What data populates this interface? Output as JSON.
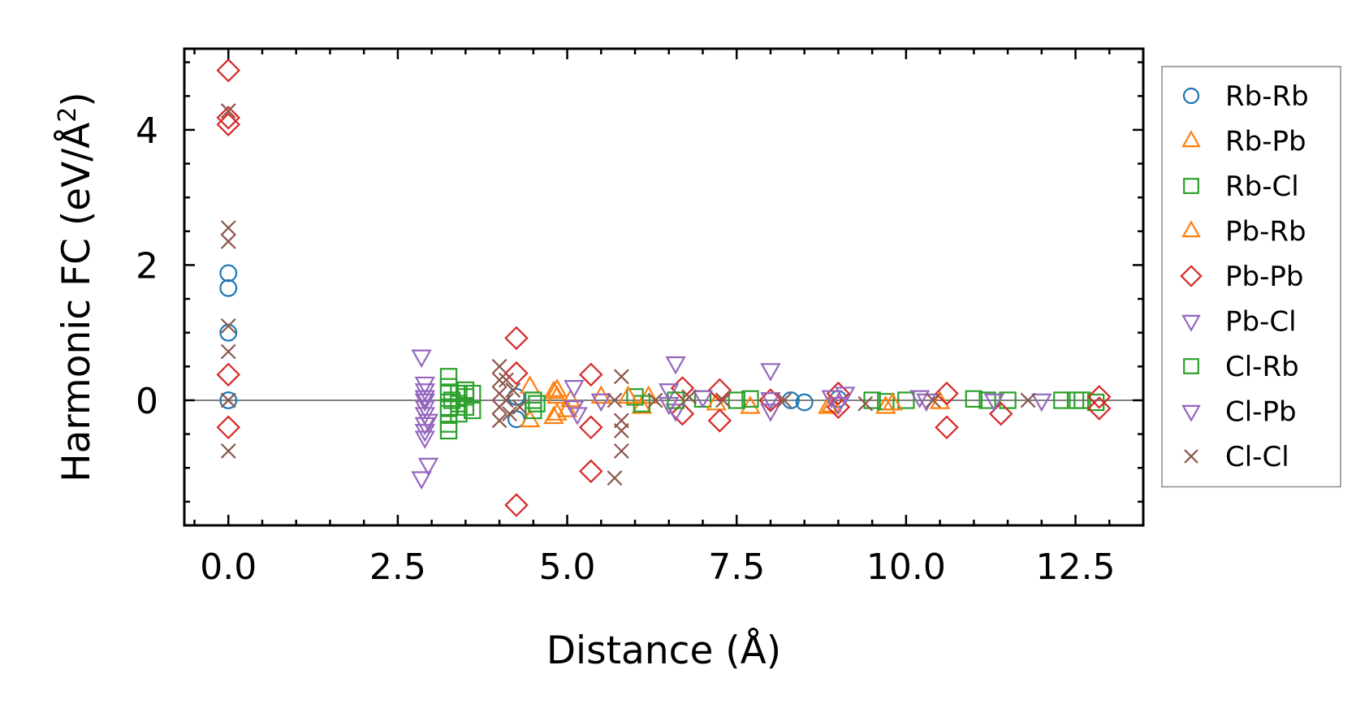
{
  "chart_data": {
    "type": "scatter",
    "title": "",
    "xlabel": "Distance (Å)",
    "ylabel_main": "Harmonic FC (eV/Å",
    "ylabel_sup": "2",
    "ylabel_close": ")",
    "xlim": [
      -0.65,
      13.5
    ],
    "ylim": [
      -1.85,
      5.2
    ],
    "xticks": [
      0.0,
      2.5,
      5.0,
      7.5,
      10.0,
      12.5
    ],
    "xtick_labels": [
      "0.0",
      "2.5",
      "5.0",
      "7.5",
      "10.0",
      "12.5"
    ],
    "yticks": [
      0,
      2,
      4
    ],
    "ytick_labels": [
      "0",
      "2",
      "4"
    ],
    "zero_line": true,
    "legend_position": "outside-right",
    "series": [
      {
        "name": "Rb-Rb",
        "marker": "circle",
        "color": "#1f77b4",
        "points": [
          [
            0,
            1.88
          ],
          [
            0,
            1.66
          ],
          [
            0,
            1.0
          ],
          [
            0,
            0
          ],
          [
            4.25,
            -0.28
          ],
          [
            4.25,
            0.05
          ],
          [
            8.3,
            0.0
          ],
          [
            8.5,
            -0.03
          ],
          [
            9.0,
            0.02
          ]
        ]
      },
      {
        "name": "Rb-Pb",
        "marker": "triangle-up",
        "color": "#ff7f0e",
        "points": [
          [
            4.45,
            0.2
          ],
          [
            4.45,
            -0.3
          ],
          [
            4.8,
            0.12
          ],
          [
            4.8,
            -0.25
          ],
          [
            4.85,
            0.05
          ],
          [
            5.0,
            -0.15
          ],
          [
            5.5,
            0.05
          ],
          [
            6.1,
            -0.1
          ],
          [
            6.2,
            0.05
          ],
          [
            7.7,
            -0.1
          ],
          [
            8.85,
            -0.1
          ],
          [
            9.7,
            -0.1
          ],
          [
            10.5,
            -0.03
          ]
        ]
      },
      {
        "name": "Rb-Cl",
        "marker": "square",
        "color": "#2ca02c",
        "points": [
          [
            3.25,
            0.35
          ],
          [
            3.25,
            0.2
          ],
          [
            3.25,
            0.1
          ],
          [
            3.25,
            -0.1
          ],
          [
            3.25,
            -0.2
          ],
          [
            3.25,
            -0.35
          ],
          [
            3.25,
            -0.45
          ],
          [
            3.4,
            0.1
          ],
          [
            3.4,
            -0.05
          ],
          [
            3.4,
            -0.2
          ],
          [
            3.5,
            0.15
          ],
          [
            3.5,
            -0.1
          ],
          [
            3.6,
            0.1
          ],
          [
            3.6,
            -0.15
          ],
          [
            4.5,
            0.0
          ],
          [
            4.5,
            -0.15
          ],
          [
            6.0,
            0.05
          ],
          [
            6.1,
            -0.05
          ],
          [
            7.0,
            0.02
          ],
          [
            7.7,
            0.02
          ],
          [
            9.7,
            -0.02
          ],
          [
            10.0,
            0.0
          ],
          [
            11.0,
            0.02
          ],
          [
            11.5,
            0.0
          ],
          [
            12.3,
            0.0
          ],
          [
            12.6,
            0.0
          ],
          [
            12.8,
            -0.03
          ]
        ]
      },
      {
        "name": "Pb-Rb",
        "marker": "triangle-up",
        "color": "#ff7f0e",
        "points": [
          [
            4.85,
            0.15
          ],
          [
            4.85,
            -0.2
          ],
          [
            5.05,
            0.0
          ],
          [
            5.9,
            0.05
          ],
          [
            7.2,
            -0.05
          ],
          [
            8.9,
            -0.08
          ],
          [
            9.8,
            -0.05
          ]
        ]
      },
      {
        "name": "Pb-Pb",
        "marker": "diamond",
        "color": "#d62728",
        "points": [
          [
            0,
            4.88
          ],
          [
            0,
            4.18
          ],
          [
            0,
            4.08
          ],
          [
            0,
            0.38
          ],
          [
            0,
            -0.4
          ],
          [
            4.25,
            0.92
          ],
          [
            4.25,
            0.4
          ],
          [
            4.25,
            -1.55
          ],
          [
            5.35,
            0.38
          ],
          [
            5.35,
            -0.4
          ],
          [
            5.35,
            -1.05
          ],
          [
            6.7,
            0.18
          ],
          [
            6.7,
            -0.2
          ],
          [
            7.25,
            0.15
          ],
          [
            7.25,
            -0.3
          ],
          [
            8.0,
            0.0
          ],
          [
            9.0,
            0.1
          ],
          [
            9.0,
            -0.1
          ],
          [
            10.6,
            0.1
          ],
          [
            10.6,
            -0.4
          ],
          [
            11.4,
            -0.2
          ],
          [
            12.85,
            0.05
          ],
          [
            12.85,
            -0.12
          ]
        ]
      },
      {
        "name": "Pb-Cl",
        "marker": "triangle-down",
        "color": "#9467bd",
        "points": [
          [
            2.85,
            0.65
          ],
          [
            2.9,
            0.25
          ],
          [
            2.9,
            0.15
          ],
          [
            2.9,
            0.0
          ],
          [
            2.9,
            -0.1
          ],
          [
            2.9,
            -0.2
          ],
          [
            2.9,
            -0.35
          ],
          [
            2.9,
            -0.45
          ],
          [
            2.9,
            -0.55
          ],
          [
            2.95,
            -0.95
          ],
          [
            2.85,
            -1.15
          ],
          [
            5.1,
            0.2
          ],
          [
            5.1,
            -0.1
          ],
          [
            5.5,
            0.0
          ],
          [
            6.5,
            0.15
          ],
          [
            6.6,
            0.55
          ],
          [
            6.6,
            -0.15
          ],
          [
            7.0,
            0.05
          ],
          [
            8.0,
            0.45
          ],
          [
            8.0,
            -0.15
          ],
          [
            8.9,
            0.05
          ],
          [
            9.1,
            0.1
          ],
          [
            10.2,
            0.05
          ],
          [
            12.0,
            0.0
          ]
        ]
      },
      {
        "name": "Cl-Rb",
        "marker": "square",
        "color": "#2ca02c",
        "points": [
          [
            3.3,
            0.0
          ],
          [
            3.5,
            0.05
          ],
          [
            4.55,
            -0.05
          ],
          [
            6.6,
            0.0
          ],
          [
            7.5,
            0.0
          ],
          [
            9.5,
            0.0
          ],
          [
            11.2,
            0.0
          ],
          [
            12.5,
            0.0
          ]
        ]
      },
      {
        "name": "Cl-Pb",
        "marker": "triangle-down",
        "color": "#9467bd",
        "points": [
          [
            2.9,
            0.05
          ],
          [
            2.95,
            -0.3
          ],
          [
            5.15,
            -0.2
          ],
          [
            6.5,
            -0.05
          ],
          [
            8.0,
            0.02
          ],
          [
            9.0,
            -0.05
          ],
          [
            10.3,
            0.0
          ],
          [
            11.3,
            0.0
          ]
        ]
      },
      {
        "name": "Cl-Cl",
        "marker": "x",
        "color": "#8c564b",
        "points": [
          [
            0,
            4.28
          ],
          [
            0,
            2.55
          ],
          [
            0,
            2.35
          ],
          [
            0,
            1.1
          ],
          [
            0,
            0.72
          ],
          [
            0,
            0.0
          ],
          [
            0,
            -0.75
          ],
          [
            4.0,
            0.5
          ],
          [
            4.0,
            0.3
          ],
          [
            4.0,
            0.1
          ],
          [
            4.0,
            -0.1
          ],
          [
            4.0,
            -0.3
          ],
          [
            4.1,
            0.3
          ],
          [
            4.1,
            0.0
          ],
          [
            4.15,
            -0.2
          ],
          [
            4.2,
            0.15
          ],
          [
            4.3,
            -0.1
          ],
          [
            5.7,
            0.0
          ],
          [
            5.8,
            0.35
          ],
          [
            5.8,
            -0.3
          ],
          [
            5.8,
            -0.45
          ],
          [
            5.8,
            -0.75
          ],
          [
            5.7,
            -1.15
          ],
          [
            6.3,
            0.0
          ],
          [
            6.8,
            0.05
          ],
          [
            7.3,
            0.0
          ],
          [
            8.2,
            0.0
          ],
          [
            9.4,
            -0.05
          ],
          [
            10.4,
            0.0
          ],
          [
            11.8,
            0.0
          ]
        ]
      }
    ]
  }
}
